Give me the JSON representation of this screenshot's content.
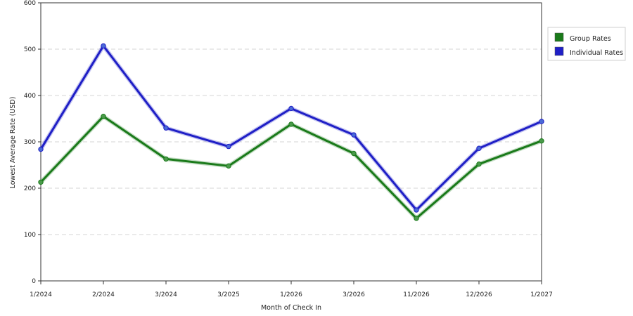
{
  "chart_data": {
    "type": "line",
    "xlabel": "Month of Check In",
    "ylabel": "Lowest Average Rate (USD)",
    "categories": [
      "1/2024",
      "2/2024",
      "3/2024",
      "3/2025",
      "1/2026",
      "3/2026",
      "11/2026",
      "12/2026",
      "1/2027"
    ],
    "ylim": [
      0,
      600
    ],
    "yticks": [
      0,
      100,
      200,
      300,
      400,
      500,
      600
    ],
    "grid": "horizontal dashed",
    "legend_position": "right",
    "series": [
      {
        "name": "Group Rates",
        "color": "#1a7a1a",
        "marker_color": "#4a9a4a",
        "values": [
          213,
          355,
          263,
          248,
          338,
          275,
          135,
          252,
          302
        ]
      },
      {
        "name": "Individual Rates",
        "color": "#1f1fc6",
        "marker_color": "#4a6ad6",
        "values": [
          284,
          507,
          330,
          290,
          372,
          315,
          153,
          286,
          344
        ]
      }
    ]
  }
}
